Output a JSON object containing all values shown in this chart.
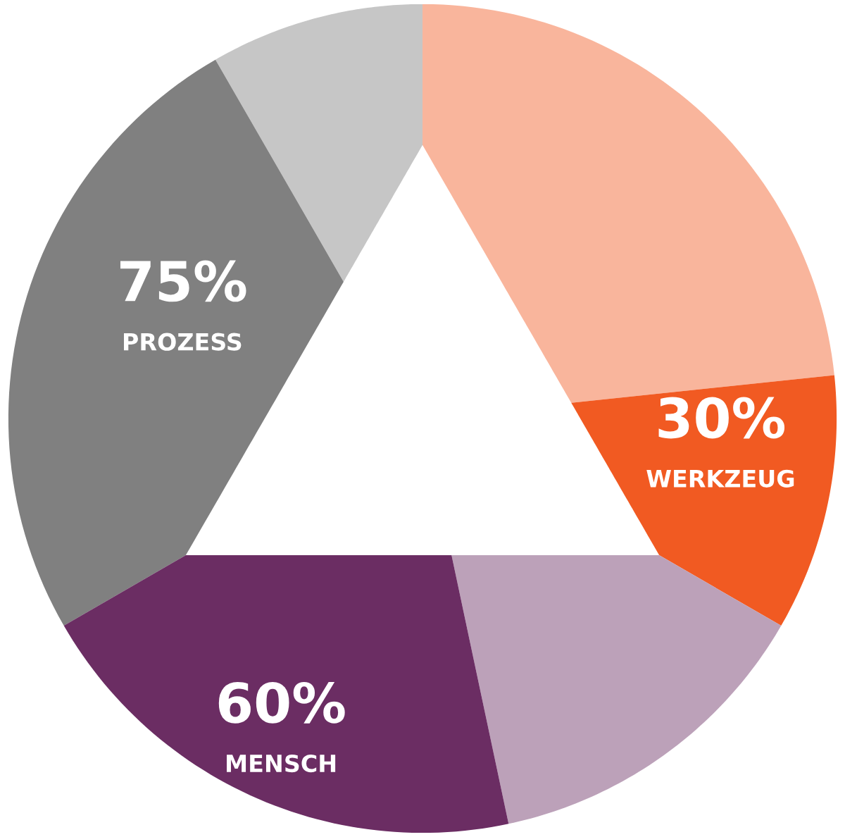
{
  "chart_data": {
    "type": "other",
    "categories": [
      "PROZESS",
      "WERKZEUG",
      "MENSCH"
    ],
    "values": [
      75,
      30,
      60
    ],
    "value_labels": [
      "75%",
      "30%",
      "60%"
    ],
    "colors": [
      "#808080",
      "#f15a22",
      "#6b2d63"
    ]
  }
}
